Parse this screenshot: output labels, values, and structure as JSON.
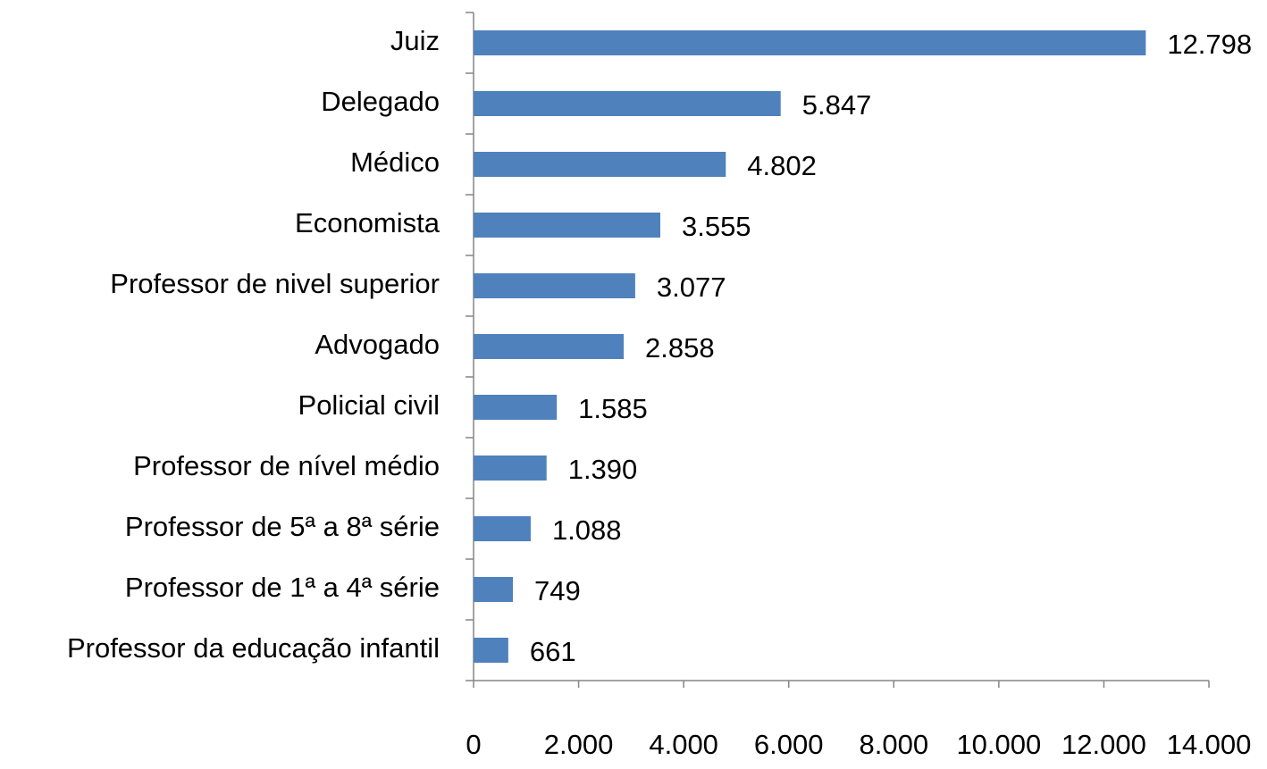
{
  "chart_data": {
    "type": "bar",
    "orientation": "horizontal",
    "categories": [
      "Juiz",
      "Delegado",
      "Médico",
      "Economista",
      "Professor de nivel superior",
      "Advogado",
      "Policial civil",
      "Professor de nível médio",
      "Professor de 5ª a 8ª série",
      "Professor de 1ª a 4ª série",
      "Professor da educação infantil"
    ],
    "values": [
      12798,
      5847,
      4802,
      3555,
      3077,
      2858,
      1585,
      1390,
      1088,
      749,
      661
    ],
    "value_labels": [
      "12.798",
      "5.847",
      "4.802",
      "3.555",
      "3.077",
      "2.858",
      "1.585",
      "1.390",
      "1.088",
      "749",
      "661"
    ],
    "color": "#4f81bd",
    "xlim": [
      0,
      14000
    ],
    "xticks": [
      0,
      {
        "value": 2000,
        "label": "2.000"
      },
      {
        "value": 4000,
        "label": "4.000"
      },
      {
        "value": 6000,
        "label": "6.000"
      },
      {
        "value": 8000,
        "label": "8.000"
      },
      {
        "value": 10000,
        "label": "10.000"
      },
      {
        "value": 12000,
        "label": "12.000"
      },
      {
        "value": 14000,
        "label": "14.000"
      }
    ],
    "grid": false
  }
}
